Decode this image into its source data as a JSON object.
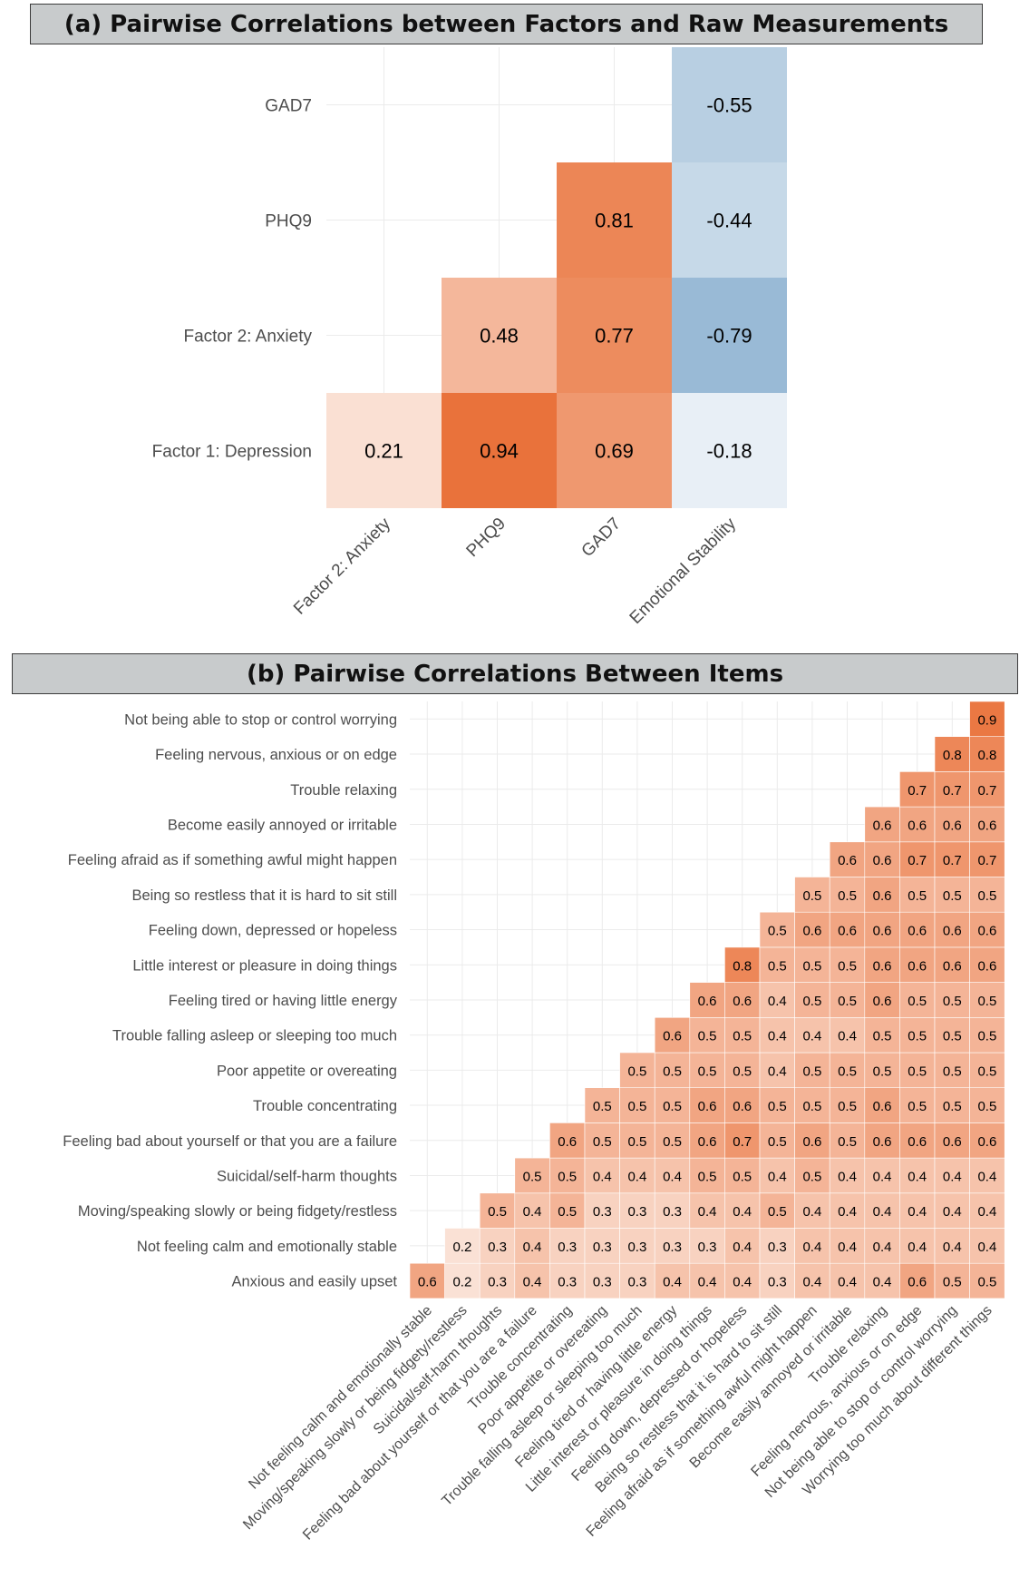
{
  "chart_data": [
    {
      "type": "heatmap",
      "title": "(a) Pairwise Correlations between Factors and Raw Measurements",
      "rows": [
        "Factor 1: Depression",
        "Factor 2: Anxiety",
        "PHQ9",
        "GAD7"
      ],
      "cols": [
        "Factor 2: Anxiety",
        "PHQ9",
        "GAD7",
        "Emotional Stability"
      ],
      "cells": [
        {
          "row": "Factor 1: Depression",
          "col": "Factor 2: Anxiety",
          "value": 0.21,
          "label": "0.21"
        },
        {
          "row": "Factor 1: Depression",
          "col": "PHQ9",
          "value": 0.94,
          "label": "0.94"
        },
        {
          "row": "Factor 1: Depression",
          "col": "GAD7",
          "value": 0.69,
          "label": "0.69"
        },
        {
          "row": "Factor 1: Depression",
          "col": "Emotional Stability",
          "value": -0.18,
          "label": "-0.18"
        },
        {
          "row": "Factor 2: Anxiety",
          "col": "PHQ9",
          "value": 0.48,
          "label": "0.48"
        },
        {
          "row": "Factor 2: Anxiety",
          "col": "GAD7",
          "value": 0.77,
          "label": "0.77"
        },
        {
          "row": "Factor 2: Anxiety",
          "col": "Emotional Stability",
          "value": -0.79,
          "label": "-0.79"
        },
        {
          "row": "PHQ9",
          "col": "GAD7",
          "value": 0.81,
          "label": "0.81"
        },
        {
          "row": "PHQ9",
          "col": "Emotional Stability",
          "value": -0.44,
          "label": "-0.44"
        },
        {
          "row": "GAD7",
          "col": "Emotional Stability",
          "value": -0.55,
          "label": "-0.55"
        }
      ],
      "colors": {
        "positive": "#e8692e",
        "negative": "#7ea8cb",
        "neutral": "#ffffff"
      },
      "grid": true
    },
    {
      "type": "heatmap",
      "title": "(b) Pairwise Correlations Between Items",
      "rows": [
        "Anxious and easily upset",
        "Not feeling calm and emotionally stable",
        "Moving/speaking slowly or being fidgety/restless",
        "Suicidal/self-harm thoughts",
        "Feeling bad about yourself or that you are a failure",
        "Trouble concentrating",
        "Poor appetite or overeating",
        "Trouble falling asleep or sleeping too much",
        "Feeling tired or having little energy",
        "Little interest or pleasure in doing things",
        "Feeling down, depressed or hopeless",
        "Being so restless that it is hard to sit still",
        "Feeling afraid as if something awful might happen",
        "Become easily annoyed or irritable",
        "Trouble relaxing",
        "Feeling nervous, anxious or on edge",
        "Not being able to stop or control worrying"
      ],
      "cols": [
        "Not feeling calm and emotionally stable",
        "Moving/speaking slowly or being fidgety/restless",
        "Suicidal/self-harm thoughts",
        "Feeling bad about yourself or that you are a failure",
        "Trouble concentrating",
        "Poor appetite or overeating",
        "Trouble falling asleep or sleeping too much",
        "Feeling tired or having little energy",
        "Little interest or pleasure in doing things",
        "Feeling down, depressed or hopeless",
        "Being so restless that it is hard to sit still",
        "Feeling afraid as if something awful might happen",
        "Become easily annoyed or irritable",
        "Trouble relaxing",
        "Feeling nervous, anxious or on edge",
        "Not being able to stop or control worrying",
        "Worrying too much about different things"
      ],
      "matrix": [
        [
          0.6,
          0.2,
          0.3,
          0.4,
          0.3,
          0.3,
          0.3,
          0.4,
          0.4,
          0.4,
          0.3,
          0.4,
          0.4,
          0.4,
          0.6,
          0.5,
          0.5
        ],
        [
          null,
          0.2,
          0.3,
          0.4,
          0.3,
          0.3,
          0.3,
          0.3,
          0.3,
          0.4,
          0.3,
          0.4,
          0.4,
          0.4,
          0.4,
          0.4,
          0.4
        ],
        [
          null,
          null,
          0.5,
          0.4,
          0.5,
          0.3,
          0.3,
          0.3,
          0.4,
          0.4,
          0.5,
          0.4,
          0.4,
          0.4,
          0.4,
          0.4,
          0.4
        ],
        [
          null,
          null,
          null,
          0.5,
          0.5,
          0.4,
          0.4,
          0.4,
          0.5,
          0.5,
          0.4,
          0.5,
          0.4,
          0.4,
          0.4,
          0.4,
          0.4
        ],
        [
          null,
          null,
          null,
          null,
          0.6,
          0.5,
          0.5,
          0.5,
          0.6,
          0.7,
          0.5,
          0.6,
          0.5,
          0.6,
          0.6,
          0.6,
          0.6
        ],
        [
          null,
          null,
          null,
          null,
          null,
          0.5,
          0.5,
          0.5,
          0.6,
          0.6,
          0.5,
          0.5,
          0.5,
          0.6,
          0.5,
          0.5,
          0.5
        ],
        [
          null,
          null,
          null,
          null,
          null,
          null,
          0.5,
          0.5,
          0.5,
          0.5,
          0.4,
          0.5,
          0.5,
          0.5,
          0.5,
          0.5,
          0.5
        ],
        [
          null,
          null,
          null,
          null,
          null,
          null,
          null,
          0.6,
          0.5,
          0.5,
          0.4,
          0.4,
          0.4,
          0.5,
          0.5,
          0.5,
          0.5
        ],
        [
          null,
          null,
          null,
          null,
          null,
          null,
          null,
          null,
          0.6,
          0.6,
          0.4,
          0.5,
          0.5,
          0.6,
          0.5,
          0.5,
          0.5
        ],
        [
          null,
          null,
          null,
          null,
          null,
          null,
          null,
          null,
          null,
          0.8,
          0.5,
          0.5,
          0.5,
          0.6,
          0.6,
          0.6,
          0.6
        ],
        [
          null,
          null,
          null,
          null,
          null,
          null,
          null,
          null,
          null,
          null,
          0.5,
          0.6,
          0.6,
          0.6,
          0.6,
          0.6,
          0.6
        ],
        [
          null,
          null,
          null,
          null,
          null,
          null,
          null,
          null,
          null,
          null,
          null,
          0.5,
          0.5,
          0.6,
          0.5,
          0.5,
          0.5
        ],
        [
          null,
          null,
          null,
          null,
          null,
          null,
          null,
          null,
          null,
          null,
          null,
          null,
          0.6,
          0.6,
          0.7,
          0.7,
          0.7
        ],
        [
          null,
          null,
          null,
          null,
          null,
          null,
          null,
          null,
          null,
          null,
          null,
          null,
          null,
          0.6,
          0.6,
          0.6,
          0.6
        ],
        [
          null,
          null,
          null,
          null,
          null,
          null,
          null,
          null,
          null,
          null,
          null,
          null,
          null,
          null,
          0.7,
          0.7,
          0.7
        ],
        [
          null,
          null,
          null,
          null,
          null,
          null,
          null,
          null,
          null,
          null,
          null,
          null,
          null,
          null,
          null,
          0.8,
          0.8
        ],
        [
          null,
          null,
          null,
          null,
          null,
          null,
          null,
          null,
          null,
          null,
          null,
          null,
          null,
          null,
          null,
          null,
          0.9
        ]
      ],
      "colors": {
        "positive": "#e8692e",
        "neutral": "#ffffff"
      },
      "grid": true
    }
  ]
}
